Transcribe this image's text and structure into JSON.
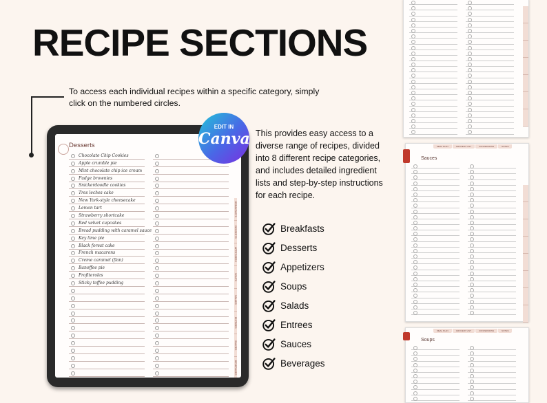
{
  "title": "RECIPE SECTIONS",
  "intro": "To access each individual recipes within a specific category, simply click on the numbered circles.",
  "description": "This provides easy access to a diverse range of recipes, divided into 8 different recipe categories, and includes detailed ingredient lists and step-by-step instructions for each recipe.",
  "badge": {
    "top": "EDIT IN",
    "brand": "Canva"
  },
  "categories": [
    "Breakfasts",
    "Desserts",
    "Appetizers",
    "Soups",
    "Salads",
    "Entrees",
    "Sauces",
    "Beverages"
  ],
  "tablet": {
    "section": "Desserts",
    "recipes": [
      "Chocolate Chip Cookies",
      "Apple crumble pie",
      "Mint chocolate chip ice cream",
      "Fudge brownies",
      "Snickerdoodle cookies",
      "Tres leches cake",
      "New York-style cheesecake",
      "Lemon tart",
      "Strawberry shortcake",
      "Red velvet cupcakes",
      "Bread pudding with caramel sauce",
      "Key lime pie",
      "Black forest cake",
      "French macarons",
      "Creme caramel (flan)",
      "Banoffee pie",
      "Profiteroles",
      "Sticky toffee pudding"
    ],
    "rows": 30,
    "side_tabs": [
      "BREAKFASTS",
      "DESSERTS",
      "APPETIZERS",
      "SOUPS",
      "SALADS",
      "ENTREES",
      "SAUCES",
      "BEVERAGES"
    ]
  },
  "top_tabs": [
    "MEAL PLAN",
    "GROCERY LIST",
    "CONVERSIONS",
    "NOTES"
  ],
  "pages": {
    "middle": "Sauces",
    "bottom": "Soups"
  },
  "colors": {
    "accent": "#f2ddd5",
    "brand_red": "#c0392b"
  }
}
